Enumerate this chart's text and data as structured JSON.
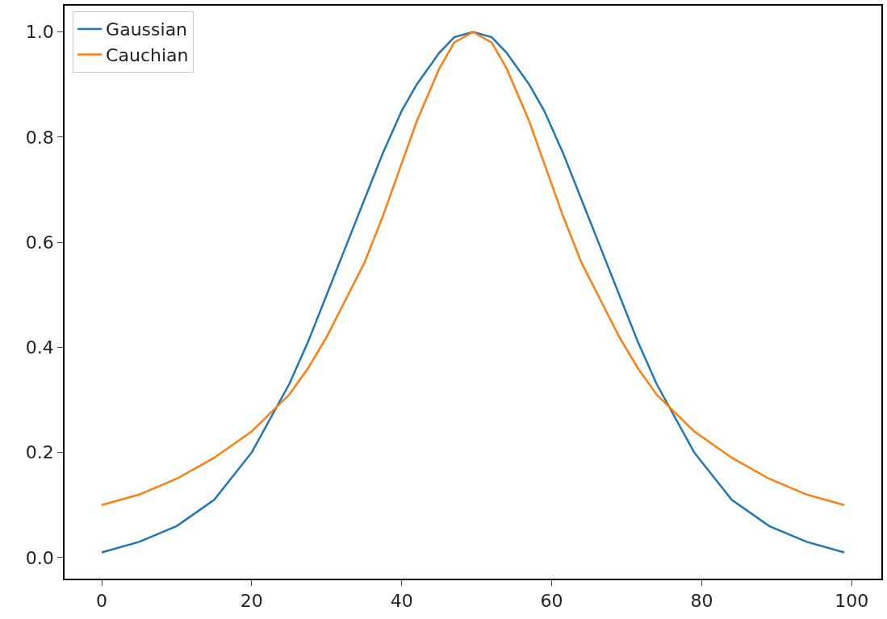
{
  "chart_data": {
    "type": "line",
    "x": [
      0,
      5,
      10,
      15,
      20,
      25,
      27.5,
      30,
      32.5,
      35,
      37.5,
      40,
      42,
      45,
      47,
      49.5,
      52,
      54,
      57,
      59,
      61.5,
      64,
      66.5,
      69,
      71.5,
      74,
      79,
      84,
      89,
      94,
      99
    ],
    "series": [
      {
        "name": "Gaussian",
        "color": "#1f77b4",
        "values": [
          0.01,
          0.03,
          0.06,
          0.11,
          0.2,
          0.33,
          0.41,
          0.5,
          0.59,
          0.68,
          0.77,
          0.85,
          0.9,
          0.96,
          0.99,
          1.0,
          0.99,
          0.96,
          0.9,
          0.85,
          0.77,
          0.68,
          0.59,
          0.5,
          0.41,
          0.33,
          0.2,
          0.11,
          0.06,
          0.03,
          0.01
        ]
      },
      {
        "name": "Cauchian",
        "color": "#ff7f0e",
        "values": [
          0.1,
          0.12,
          0.15,
          0.19,
          0.24,
          0.31,
          0.36,
          0.42,
          0.49,
          0.56,
          0.65,
          0.75,
          0.83,
          0.93,
          0.98,
          1.0,
          0.98,
          0.93,
          0.83,
          0.75,
          0.65,
          0.56,
          0.49,
          0.42,
          0.36,
          0.31,
          0.24,
          0.19,
          0.15,
          0.12,
          0.1
        ]
      }
    ],
    "xlim": [
      -4.95,
      103.95
    ],
    "xticks": [
      0,
      20,
      40,
      60,
      80,
      100
    ],
    "ylim": [
      -0.04,
      1.05
    ],
    "yticks": [
      {
        "value": 0,
        "label": "0.0"
      },
      {
        "value": 0.2,
        "label": "0.2"
      },
      {
        "value": 0.4,
        "label": "0.4"
      },
      {
        "value": 0.6,
        "label": "0.6"
      },
      {
        "value": 0.8,
        "label": "0.8"
      },
      {
        "value": 1.0,
        "label": "1.0"
      }
    ],
    "legend": "top left",
    "marker": "none",
    "line_style": "solid"
  }
}
